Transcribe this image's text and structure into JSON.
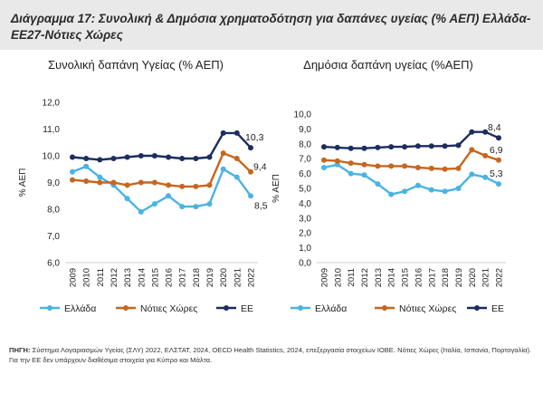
{
  "header": {
    "title": "Διάγραμμα 17: Συνολική & Δημόσια χρηματοδότηση για δαπάνες υγείας (% ΑΕΠ) Ελλάδα-ΕΕ27-Νότιες Χώρες"
  },
  "chart_data": [
    {
      "type": "line",
      "title": "Συνολική δαπάνη Υγείας (% ΑΕΠ)",
      "xlabel": "",
      "ylabel": "% ΑΕΠ",
      "x": [
        "2009",
        "2010",
        "2011",
        "2012",
        "2013",
        "2014",
        "2015",
        "2016",
        "2017",
        "2018",
        "2019",
        "2020",
        "2021",
        "2022"
      ],
      "ylim": [
        6.0,
        12.0
      ],
      "yticks": [
        "6,0",
        "7,0",
        "8,0",
        "9,0",
        "10,0",
        "11,0",
        "12,0"
      ],
      "yticks_values": [
        6,
        7,
        8,
        9,
        10,
        11,
        12
      ],
      "series": [
        {
          "name": "Ελλάδα",
          "color": "#4ab3e3",
          "values": [
            9.4,
            9.6,
            9.2,
            8.9,
            8.4,
            7.9,
            8.2,
            8.5,
            8.1,
            8.1,
            8.2,
            9.5,
            9.2,
            8.5
          ],
          "end_label": "8,5"
        },
        {
          "name": "Νότιες Χώρες",
          "color": "#c8651e",
          "values": [
            9.1,
            9.05,
            9.0,
            9.0,
            8.9,
            9.0,
            9.0,
            8.9,
            8.85,
            8.85,
            8.9,
            10.1,
            9.9,
            9.4
          ],
          "end_label": "9,4"
        },
        {
          "name": "ΕΕ",
          "color": "#1c2d5e",
          "values": [
            9.95,
            9.9,
            9.85,
            9.9,
            9.95,
            10.0,
            10.0,
            9.95,
            9.9,
            9.9,
            9.95,
            10.85,
            10.85,
            10.3
          ],
          "end_label": "10,3"
        }
      ],
      "grid": false
    },
    {
      "type": "line",
      "title": "Δημόσια δαπάνη υγείας (%ΑΕΠ)",
      "xlabel": "",
      "ylabel": "% ΑΕΠ",
      "x": [
        "2009",
        "2010",
        "2011",
        "2012",
        "2013",
        "2014",
        "2015",
        "2016",
        "2017",
        "2018",
        "2019",
        "2020",
        "2021",
        "2022"
      ],
      "ylim": [
        0.0,
        10.0
      ],
      "yticks": [
        "0,0",
        "1,0",
        "2,0",
        "3,0",
        "4,0",
        "5,0",
        "6,0",
        "7,0",
        "8,0",
        "9,0",
        "10,0"
      ],
      "yticks_values": [
        0,
        1,
        2,
        3,
        4,
        5,
        6,
        7,
        8,
        9,
        10
      ],
      "series": [
        {
          "name": "Ελλάδα",
          "color": "#4ab3e3",
          "values": [
            6.4,
            6.6,
            6.0,
            5.9,
            5.3,
            4.6,
            4.8,
            5.2,
            4.9,
            4.8,
            5.0,
            5.95,
            5.75,
            5.3
          ],
          "end_label": "5,3"
        },
        {
          "name": "Νότιες Χώρες",
          "color": "#c8651e",
          "values": [
            6.9,
            6.85,
            6.7,
            6.6,
            6.5,
            6.5,
            6.5,
            6.4,
            6.35,
            6.3,
            6.35,
            7.6,
            7.2,
            6.9
          ],
          "end_label": "6,9"
        },
        {
          "name": "ΕΕ",
          "color": "#1c2d5e",
          "values": [
            7.8,
            7.75,
            7.7,
            7.7,
            7.75,
            7.8,
            7.8,
            7.85,
            7.85,
            7.85,
            7.9,
            8.8,
            8.8,
            8.4
          ],
          "end_label": "8,4"
        }
      ],
      "grid": false
    }
  ],
  "source": {
    "label": "ΠΗΓΗ:",
    "text": "Σύστημα Λογαριασμών Υγείας (ΣΛΥ) 2022, ΕΛΣΤΑΤ, 2024, OECD Health Statistics, 2024, επεξεργασία στοιχείων ΙΟΒΕ. Νότιες Χώρες (Ιταλία, Ισπανία, Πορτογαλία). Για την ΕΕ δεν υπάρχουν διαθέσιμα στοιχεία για Κύπρο και Μάλτα."
  }
}
